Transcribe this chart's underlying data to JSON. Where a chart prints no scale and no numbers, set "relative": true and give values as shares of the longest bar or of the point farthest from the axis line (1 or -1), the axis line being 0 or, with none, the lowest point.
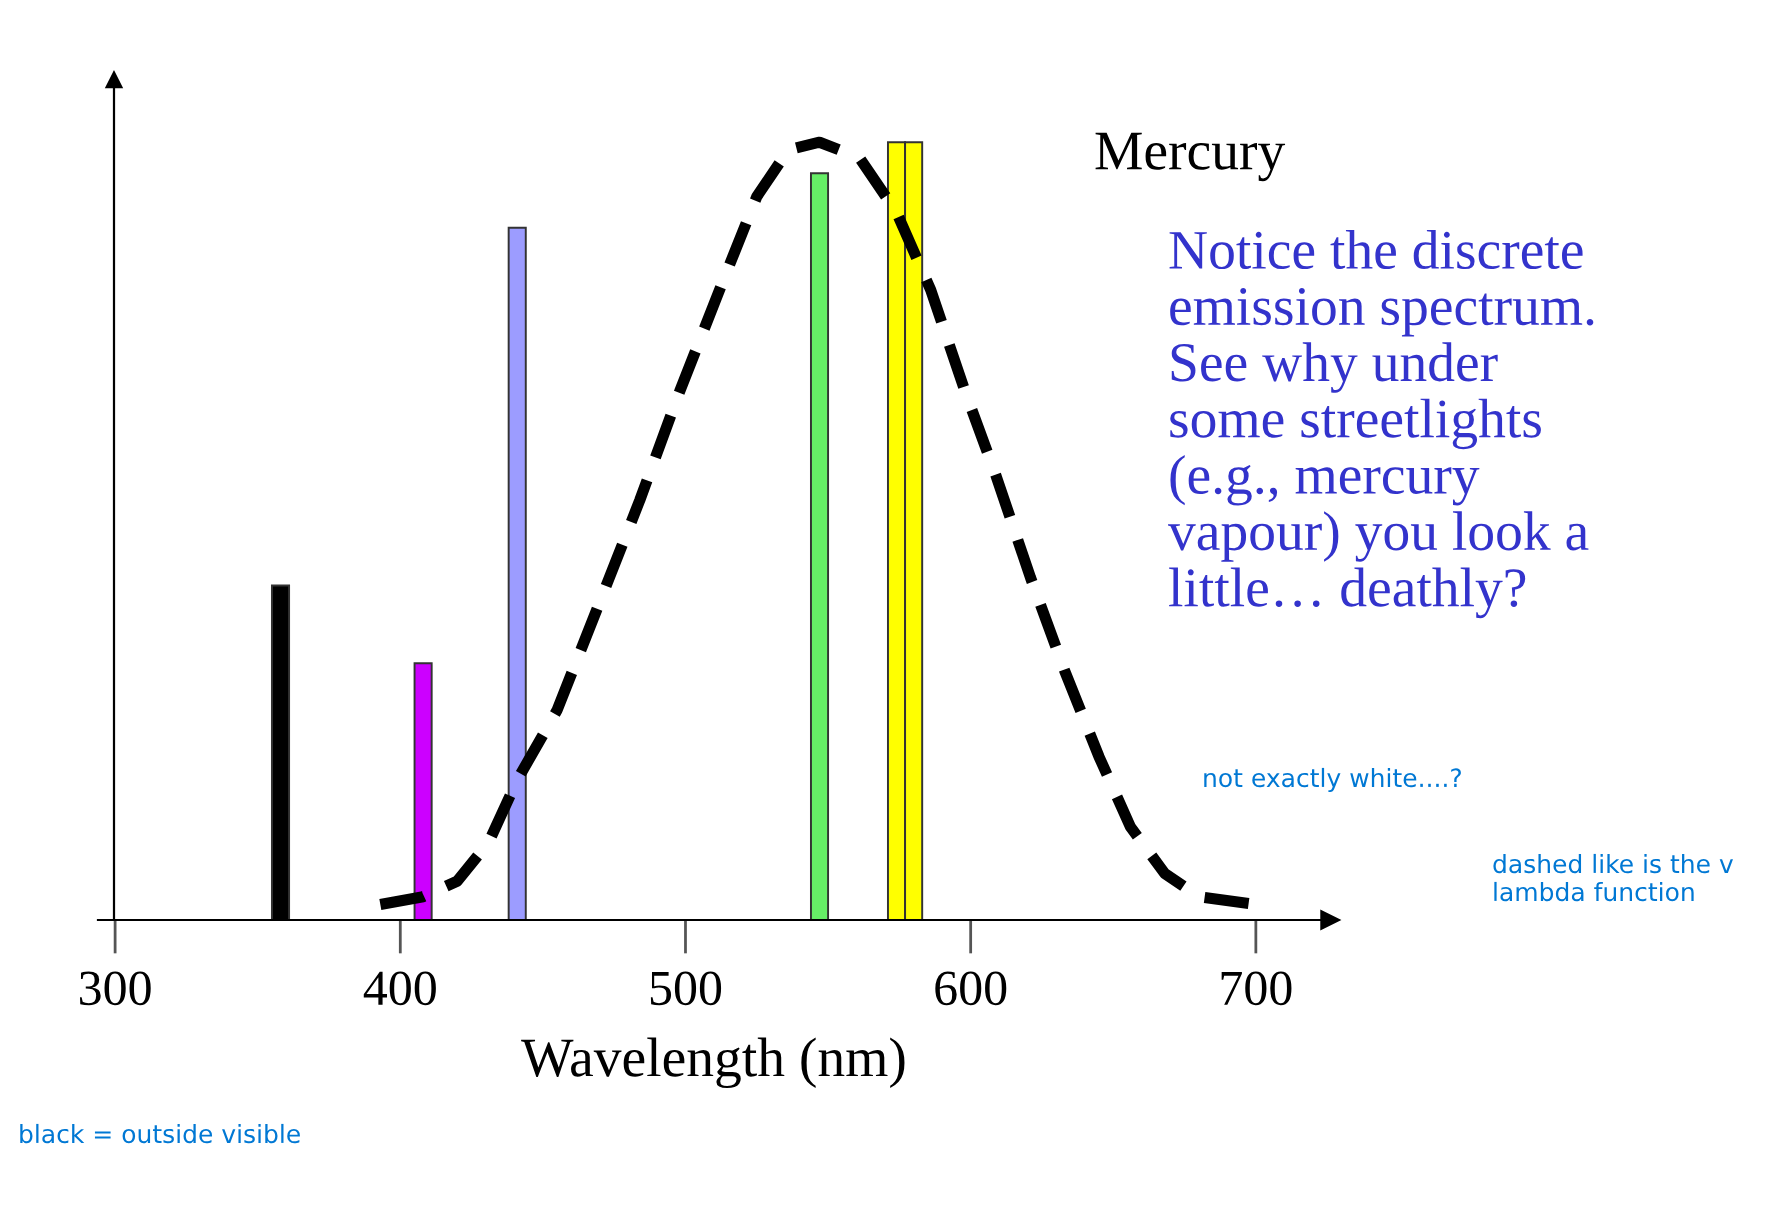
{
  "chart_data": {
    "type": "bar",
    "relative": true,
    "xlabel": "Wavelength (nm)",
    "xlim": [
      294,
      726
    ],
    "xticks": [
      300,
      400,
      500,
      600,
      700
    ],
    "series": [
      {
        "x": [
          358,
          408,
          441,
          547,
          574,
          580
        ],
        "values": [
          0.43,
          0.33,
          0.89,
          0.96,
          1.0,
          1.0
        ],
        "colors": [
          "#000000",
          "#cc00ff",
          "#9c9cff",
          "#66ee66",
          "#ffff00",
          "#ffff00"
        ]
      },
      {
        "type": "line",
        "color": "#000000",
        "line_style": "dashed",
        "x": [
          393,
          408,
          420,
          431,
          441,
          455,
          469,
          484,
          498,
          513,
          525,
          536,
          547,
          561,
          574,
          586,
          598,
          609,
          621,
          633,
          645,
          656,
          668,
          680,
          700
        ],
        "values": [
          0.02,
          0.03,
          0.05,
          0.1,
          0.18,
          0.27,
          0.4,
          0.54,
          0.68,
          0.82,
          0.93,
          0.99,
          1.0,
          0.98,
          0.91,
          0.81,
          0.68,
          0.57,
          0.44,
          0.32,
          0.21,
          0.12,
          0.06,
          0.03,
          0.02
        ]
      }
    ],
    "annotations": [
      "Mercury",
      "Notice the discrete\nemission spectrum.\nSee why under\nsome streetlights\n(e.g., mercury\nvapour) you look a\nlittle… deathly?",
      "not exactly white....?",
      "dashed like is the v\nlambda function",
      "black = outside visible"
    ]
  }
}
